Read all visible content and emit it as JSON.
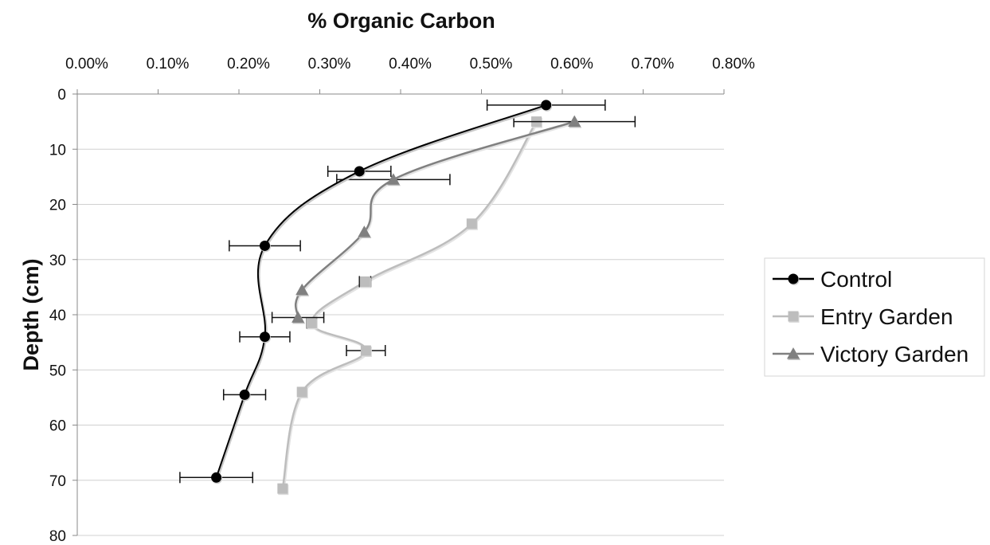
{
  "chart_data": {
    "type": "line",
    "title": "% Organic Carbon",
    "xlabel": "% Organic Carbon",
    "ylabel": "Depth (cm)",
    "x_axis_position": "top",
    "y_axis_inverted": true,
    "xlim": [
      0,
      0.8
    ],
    "ylim": [
      0,
      80
    ],
    "x_ticks": [
      "0.00%",
      "0.10%",
      "0.20%",
      "0.30%",
      "0.40%",
      "0.50%",
      "0.60%",
      "0.70%",
      "0.80%"
    ],
    "y_ticks": [
      "0",
      "10",
      "20",
      "30",
      "40",
      "50",
      "60",
      "70",
      "80"
    ],
    "grid": "horizontal",
    "legend_position": "right",
    "series": [
      {
        "name": "Control",
        "marker": "circle",
        "color": "#000000",
        "points": [
          {
            "x": 0.58,
            "y": 2,
            "err": 0.073
          },
          {
            "x": 0.349,
            "y": 14,
            "err": 0.039
          },
          {
            "x": 0.232,
            "y": 27.5,
            "err": 0.044
          },
          {
            "x": 0.232,
            "y": 44,
            "err": 0.031
          },
          {
            "x": 0.207,
            "y": 54.5,
            "err": 0.026
          },
          {
            "x": 0.172,
            "y": 69.5,
            "err": 0.045
          }
        ]
      },
      {
        "name": "Entry Garden",
        "marker": "square",
        "color": "#bdbdbd",
        "points": [
          {
            "x": 0.568,
            "y": 5,
            "err": null
          },
          {
            "x": 0.488,
            "y": 23.5,
            "err": null
          },
          {
            "x": 0.356,
            "y": 34,
            "err": 0.007
          },
          {
            "x": 0.29,
            "y": 41.5,
            "err": 0.006
          },
          {
            "x": 0.357,
            "y": 46.5,
            "err": 0.024
          },
          {
            "x": 0.278,
            "y": 54,
            "err": null
          },
          {
            "x": 0.254,
            "y": 71.5,
            "err": null
          }
        ]
      },
      {
        "name": "Victory Garden",
        "marker": "triangle",
        "color": "#808080",
        "points": [
          {
            "x": 0.615,
            "y": 5,
            "err": 0.075
          },
          {
            "x": 0.391,
            "y": 15.5,
            "err": 0.07
          },
          {
            "x": 0.355,
            "y": 25,
            "err": null
          },
          {
            "x": 0.278,
            "y": 35.5,
            "err": null
          },
          {
            "x": 0.273,
            "y": 40.5,
            "err": 0.032
          }
        ]
      }
    ]
  }
}
